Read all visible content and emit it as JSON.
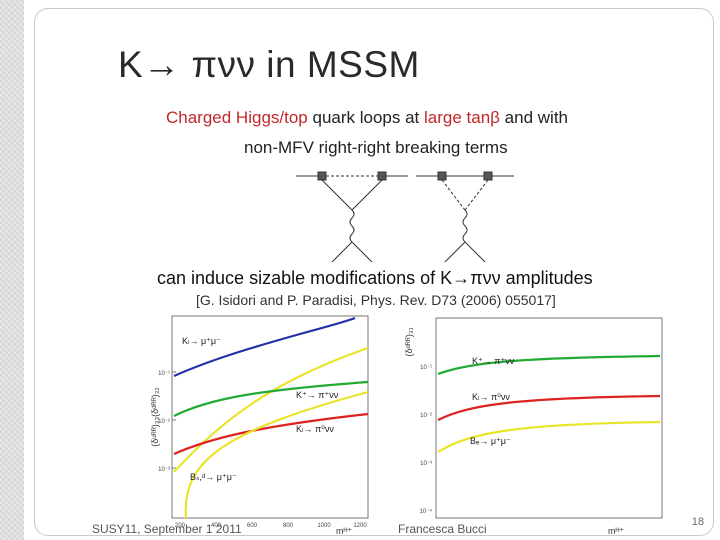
{
  "slide": {
    "title": "K→ πνν in MSSM",
    "line1_part1": "Charged Higgs/top",
    "line1_part2": " quark loops at ",
    "line1_part3": "large tanβ",
    "line1_part4": " and with",
    "line2": "non-MFV right-right breaking terms",
    "induce_text": "can induce sizable modifications of K→πνν amplitudes",
    "reference": "[G. Isidori and P. Paradisi, Phys. Rev. D73 (2006) 055017]",
    "footer_left": "SUSY11, September 1 2011",
    "footer_center": "Francesca Bucci",
    "page_number": "18"
  },
  "colors": {
    "accent_red": "#c0282a",
    "blue": "#2233aa",
    "green": "#22aa33",
    "red": "#dd2222",
    "yellow": "#e8e42a"
  },
  "chart_data": [
    {
      "type": "line",
      "ylabel": "(δᵘᴿᴿ)₃₃(δᵈᴿᴿ)₃₂",
      "xlabel": "mᴴ⁺",
      "x_tick_labels": [
        "200",
        "400",
        "600",
        "800",
        "1000",
        "1200"
      ],
      "y_tick_labels": [
        "10⁻¹",
        "10⁻²",
        "10⁻³"
      ],
      "annotations": [
        "Kₗ→ μ⁺μ⁻",
        "K⁺→ π⁺νν",
        "Kₗ→ π⁰νν",
        "Bₛ,ᵈ→ μ⁺μ⁻"
      ],
      "series": [
        {
          "color": "#2233aa"
        },
        {
          "color": "#e8e42a"
        },
        {
          "color": "#22aa33"
        },
        {
          "color": "#dd2222"
        },
        {
          "color": "#e8e42a"
        }
      ]
    },
    {
      "type": "line",
      "ylabel": "(δᵈᴿᴿ)₃₁",
      "xlabel": "mᴴ⁺",
      "y_tick_labels": [
        "10⁻¹",
        "10⁻²",
        "10⁻³",
        "10⁻⁴"
      ],
      "annotations": [
        "K⁺→ π⁺νν",
        "Kₗ→ π⁰νν",
        "Bₑ→ μ⁺μ⁻"
      ],
      "series": [
        {
          "color": "#22aa33"
        },
        {
          "color": "#dd2222"
        },
        {
          "color": "#e8e42a"
        }
      ]
    }
  ]
}
